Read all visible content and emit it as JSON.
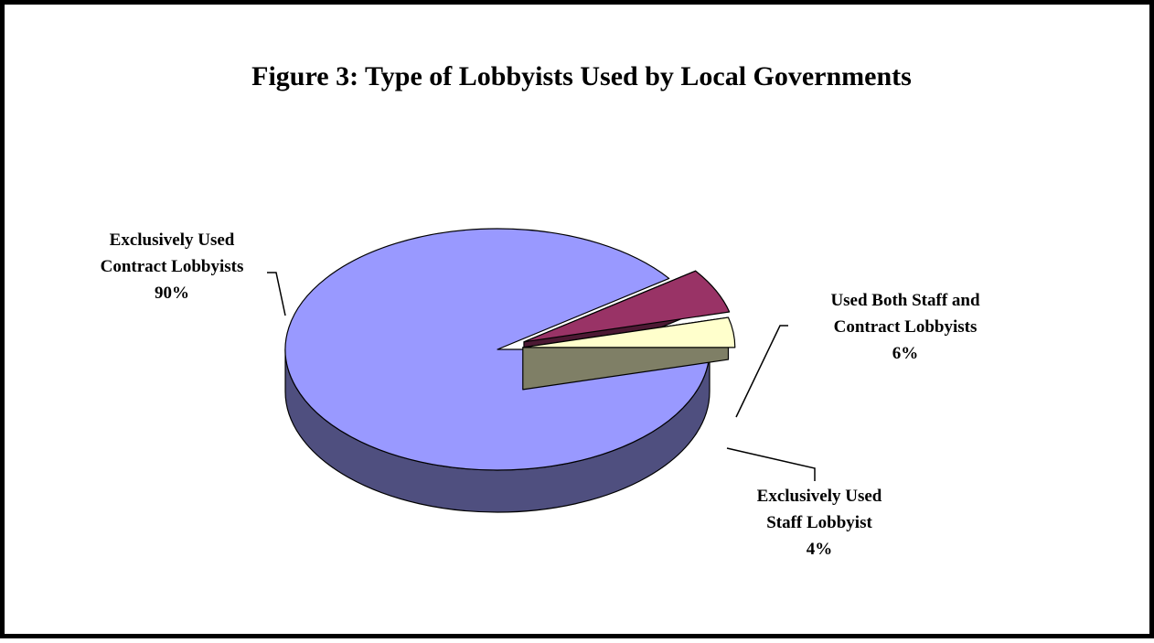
{
  "chart_data": {
    "type": "pie",
    "style": "3d-exploded",
    "title": "Figure 3:  Type of Lobbyists Used by Local Governments",
    "slices": [
      {
        "name_lines": [
          "Exclusively Used",
          "Contract Lobbyists"
        ],
        "percent_label": "90%",
        "value": 90,
        "color": "#9999FF",
        "side_color": "#4F4F7F"
      },
      {
        "name_lines": [
          "Used Both Staff and",
          "Contract Lobbyists"
        ],
        "percent_label": "6%",
        "value": 6,
        "color": "#993366",
        "side_color": "#4C1933"
      },
      {
        "name_lines": [
          "Exclusively Used",
          "Staff Lobbyist"
        ],
        "percent_label": "4%",
        "value": 4,
        "color": "#FFFFCC",
        "side_color": "#7F7F66"
      }
    ],
    "legend": "none"
  }
}
